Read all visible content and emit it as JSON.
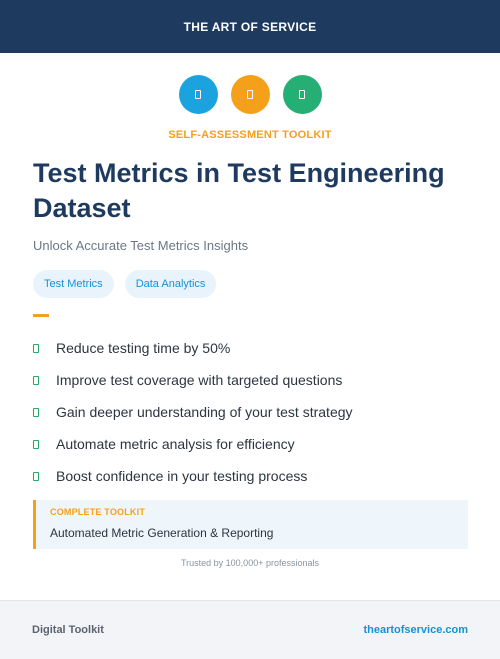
{
  "header": {
    "brand": "THE ART OF SERVICE"
  },
  "icons": [
    {
      "name": "clipboard-icon",
      "color": "#1ba3e0"
    },
    {
      "name": "document-icon",
      "color": "#f5a01a"
    },
    {
      "name": "checklist-icon",
      "color": "#27ae74"
    }
  ],
  "kicker": "SELF-ASSESSMENT TOOLKIT",
  "title": "Test Metrics in Test Engineering Dataset",
  "subtitle": "Unlock Accurate Test Metrics Insights",
  "tags": [
    "Test Metrics",
    "Data Analytics"
  ],
  "benefits": [
    "Reduce testing time by 50%",
    "Improve test coverage with targeted questions",
    "Gain deeper understanding of your test strategy",
    "Automate metric analysis for efficiency",
    "Boost confidence in your testing process"
  ],
  "toolkit": {
    "label": "COMPLETE TOOLKIT",
    "name": "Automated Metric Generation & Reporting"
  },
  "trusted": "Trusted by 100,000+ professionals",
  "footer": {
    "left": "Digital Toolkit",
    "right": "theartofservice.com"
  },
  "colors": {
    "navy": "#1e3a5f",
    "accent_orange": "#f5a01a",
    "accent_blue": "#1592d6",
    "accent_green": "#26a86a"
  }
}
